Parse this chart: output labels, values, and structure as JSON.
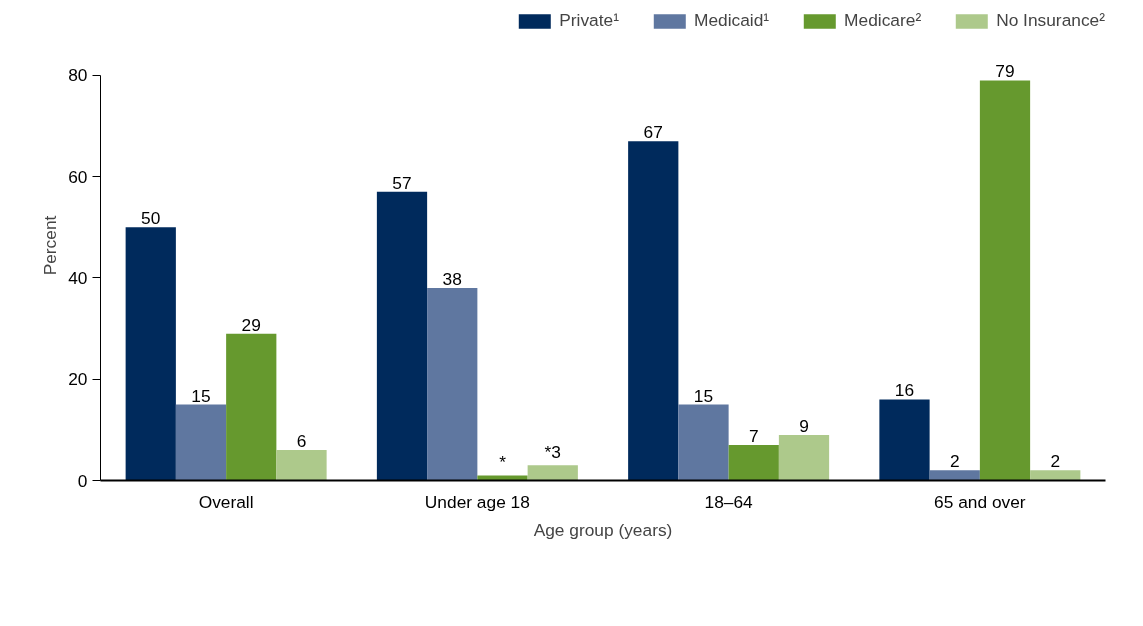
{
  "chart_data": {
    "type": "bar",
    "xlabel": "Age group (years)",
    "ylabel": "Percent",
    "categories": [
      "Overall",
      "Under age 18",
      "18–64",
      "65 and over"
    ],
    "series": [
      {
        "name": "Private¹",
        "color": "#002a5c",
        "values": [
          50,
          57,
          67,
          16
        ]
      },
      {
        "name": "Medicaid¹",
        "color": "#5f77a0",
        "values": [
          15,
          38,
          15,
          2
        ]
      },
      {
        "name": "Medicare²",
        "color": "#66992e",
        "values": [
          29,
          1,
          7,
          79
        ],
        "value_labels": [
          "29",
          "*",
          "7",
          "79"
        ]
      },
      {
        "name": "No Insurance²",
        "color": "#adc98b",
        "values": [
          6,
          3,
          9,
          2
        ],
        "value_labels": [
          "6",
          "*3",
          "9",
          "2"
        ]
      }
    ],
    "ylim": [
      0,
      80
    ],
    "yticks": [
      0,
      20,
      40,
      60,
      80
    ],
    "data_labels": true,
    "legend": "top right",
    "grid": false
  }
}
